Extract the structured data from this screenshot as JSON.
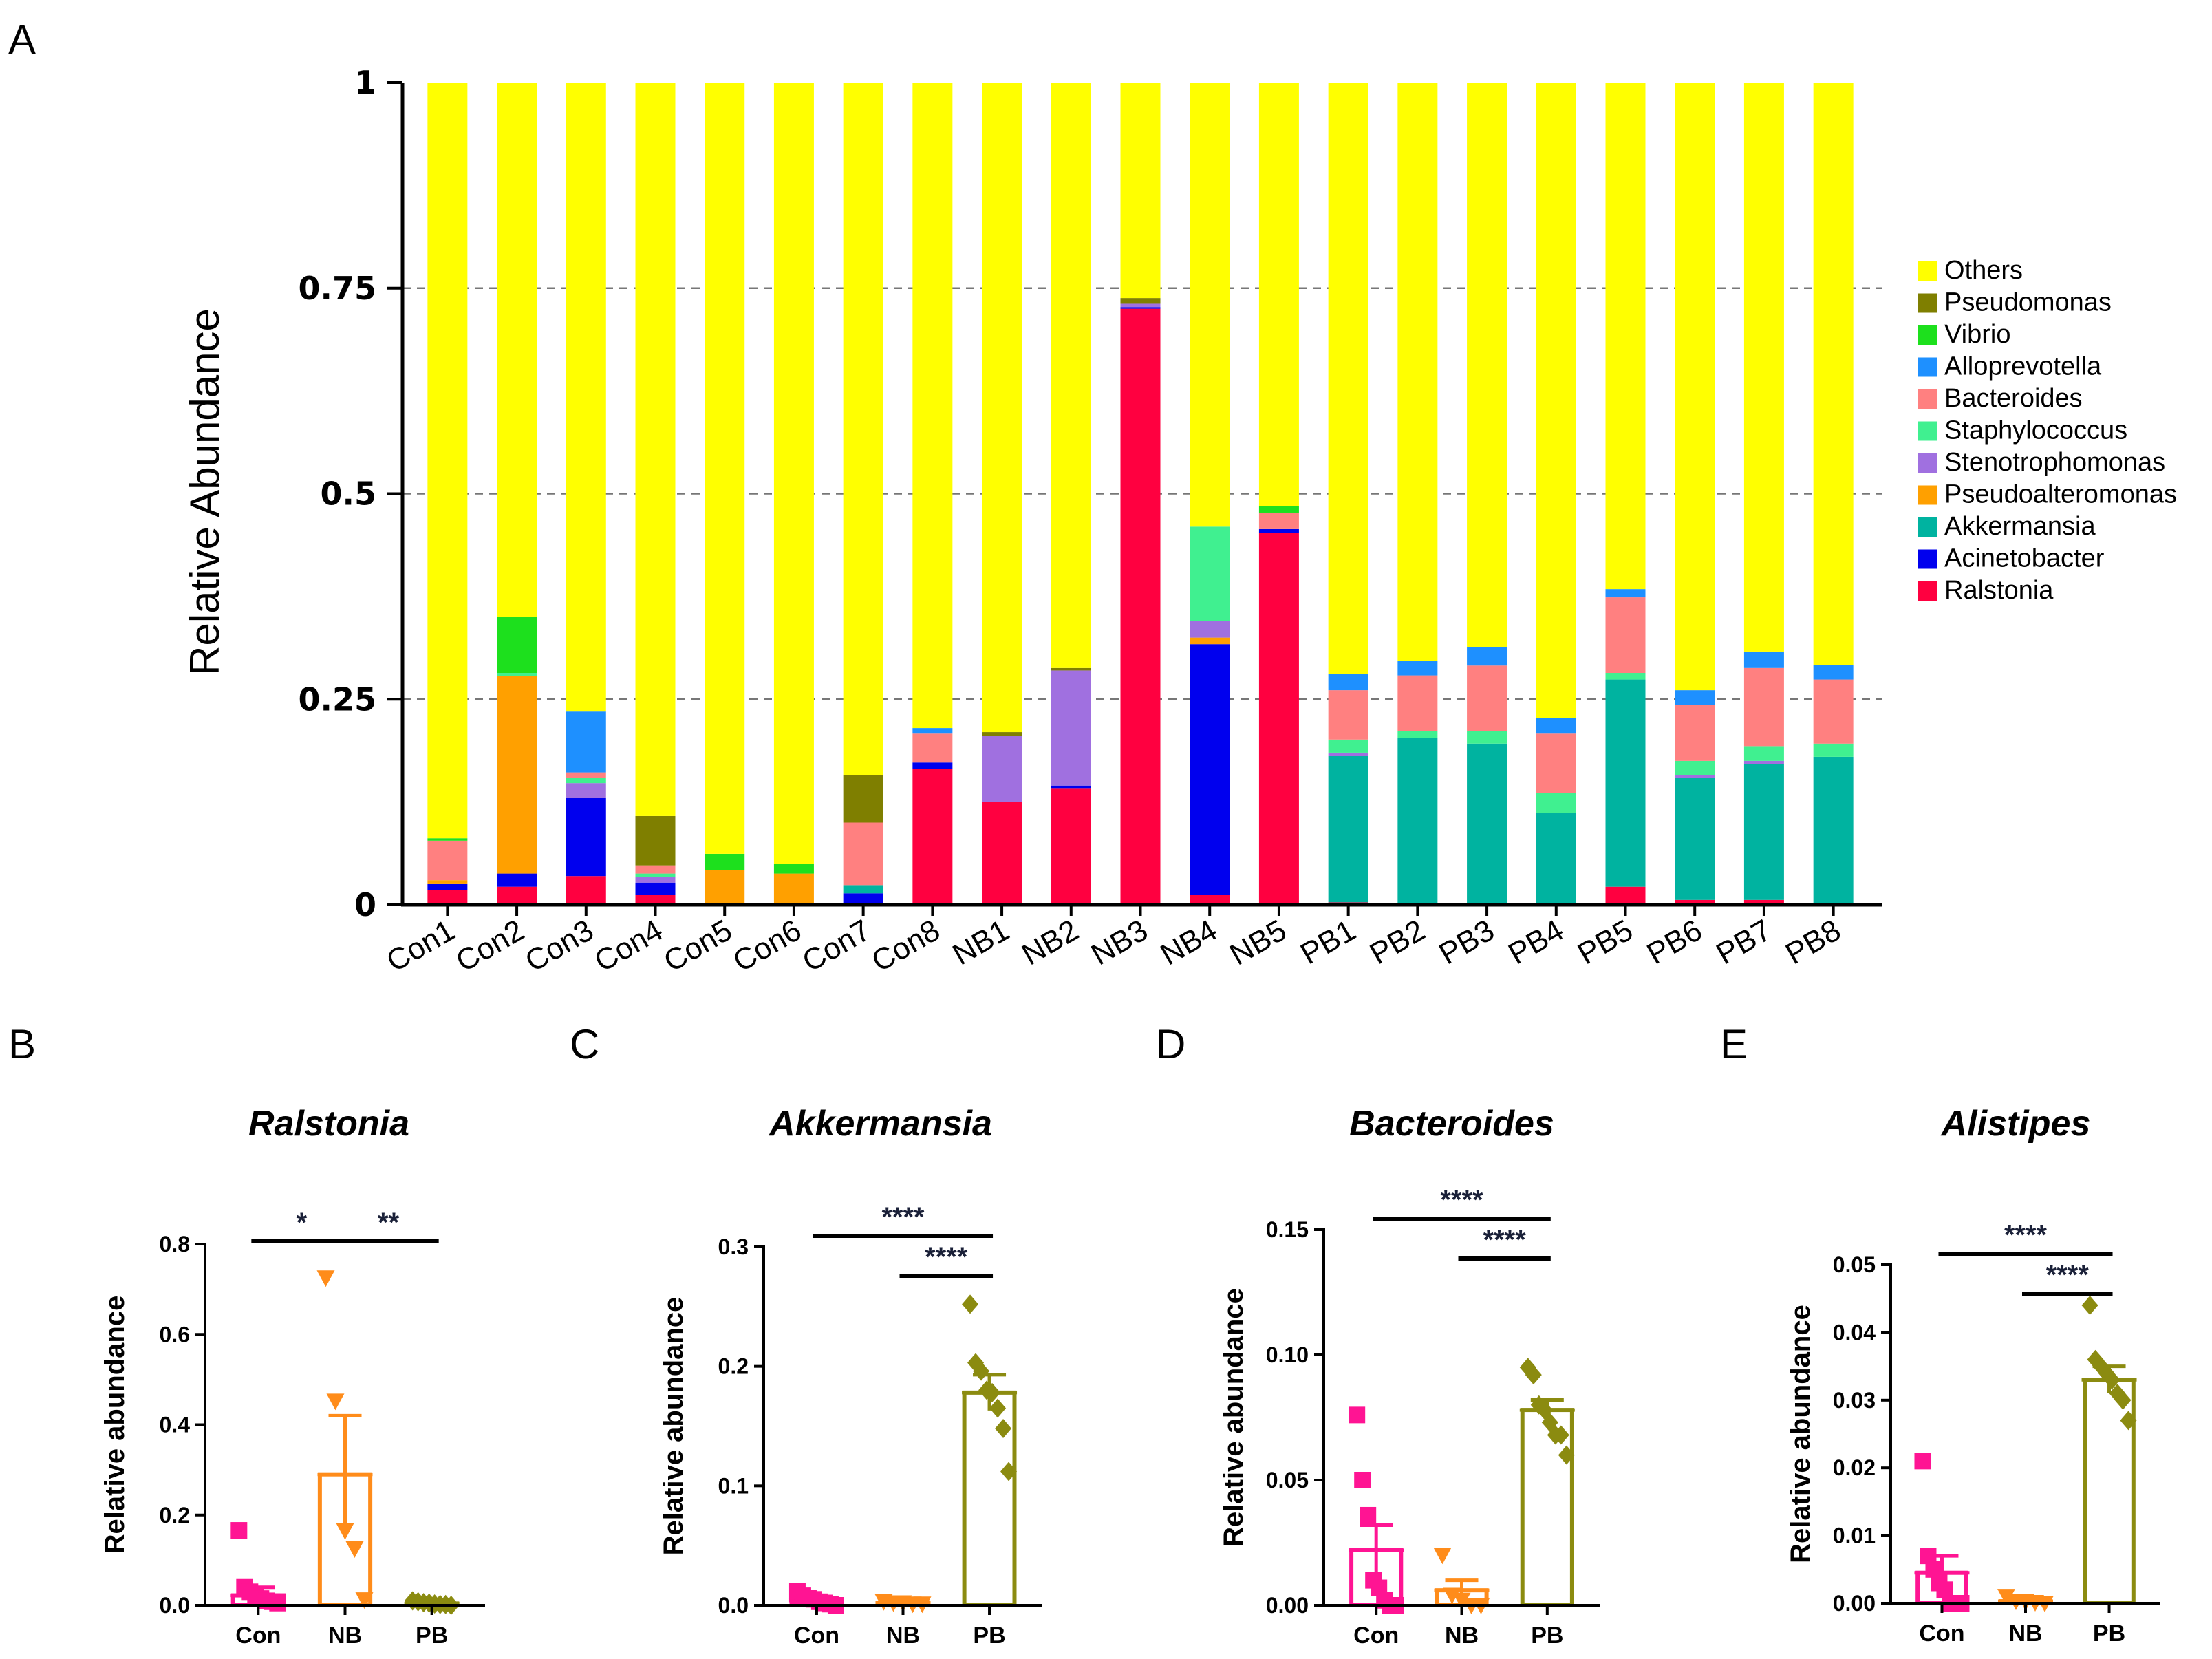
{
  "panel_labels": [
    "A",
    "B",
    "C",
    "D",
    "E"
  ],
  "colors": {
    "Others": "#ffff00",
    "Pseudomonas": "#7f7f00",
    "Vibrio": "#1de01d",
    "Alloprevotella": "#1e90ff",
    "Bacteroides": "#ff8080",
    "Staphylococcus": "#40f090",
    "Stenotrophomonas": "#a070e0",
    "Pseudoalteromonas": "#ffa000",
    "Akkermansia": "#00b3a0",
    "Acinetobacter": "#0000ee",
    "Ralstonia": "#ff0040",
    "Con": "#ff1493",
    "NB": "#ff8c1a",
    "PB": "#8b8b10"
  },
  "chart_data": [
    {
      "type": "bar",
      "stacked": true,
      "panel": "A",
      "title": "",
      "xlabel": "",
      "ylabel": "Relative Abundance",
      "ylim": [
        0,
        1
      ],
      "yticks": [
        0,
        0.25,
        0.5,
        0.75,
        1
      ],
      "ytick_labels": [
        "0",
        "0.25",
        "0.5",
        "0.75",
        "1"
      ],
      "grid": "dashed",
      "legend_position": "right",
      "categories": [
        "Con1",
        "Con2",
        "Con3",
        "Con4",
        "Con5",
        "Con6",
        "Con7",
        "Con8",
        "NB1",
        "NB2",
        "NB3",
        "NB4",
        "NB5",
        "PB1",
        "PB2",
        "PB3",
        "PB4",
        "PB5",
        "PB6",
        "PB7",
        "PB8"
      ],
      "legend": [
        "Others",
        "Pseudomonas",
        "Vibrio",
        "Alloprevotella",
        "Bacteroides",
        "Staphylococcus",
        "Stenotrophomonas",
        "Pseudoalteromonas",
        "Akkermansia",
        "Acinetobacter",
        "Ralstonia"
      ],
      "series": [
        {
          "name": "Ralstonia",
          "values": [
            0.018,
            0.022,
            0.035,
            0.012,
            0.0,
            0.0,
            0.0,
            0.165,
            0.125,
            0.142,
            0.725,
            0.012,
            0.452,
            0.003,
            0.0,
            0.0,
            0.0,
            0.022,
            0.006,
            0.006,
            0.0
          ]
        },
        {
          "name": "Acinetobacter",
          "values": [
            0.008,
            0.016,
            0.095,
            0.015,
            0.0,
            0.0,
            0.014,
            0.008,
            0.0,
            0.003,
            0.002,
            0.305,
            0.005,
            0.0,
            0.0,
            0.0,
            0.0,
            0.0,
            0.0,
            0.0,
            0.0
          ]
        },
        {
          "name": "Akkermansia",
          "values": [
            0.0,
            0.0,
            0.0,
            0.0,
            0.0,
            0.0,
            0.01,
            0.0,
            0.0,
            0.0,
            0.0,
            0.0,
            0.0,
            0.178,
            0.203,
            0.196,
            0.112,
            0.252,
            0.148,
            0.165,
            0.18
          ]
        },
        {
          "name": "Pseudoalteromonas",
          "values": [
            0.004,
            0.24,
            0.0,
            0.0,
            0.042,
            0.038,
            0.0,
            0.0,
            0.0,
            0.0,
            0.0,
            0.008,
            0.0,
            0.0,
            0.0,
            0.0,
            0.0,
            0.0,
            0.0,
            0.0,
            0.0
          ]
        },
        {
          "name": "Stenotrophomonas",
          "values": [
            0.0,
            0.0,
            0.018,
            0.007,
            0.0,
            0.0,
            0.0,
            0.0,
            0.08,
            0.14,
            0.004,
            0.02,
            0.0,
            0.004,
            0.0,
            0.0,
            0.0,
            0.0,
            0.004,
            0.004,
            0.0
          ]
        },
        {
          "name": "Staphylococcus",
          "values": [
            0.0,
            0.004,
            0.006,
            0.004,
            0.0,
            0.0,
            0.0,
            0.0,
            0.0,
            0.0,
            0.0,
            0.115,
            0.0,
            0.016,
            0.008,
            0.015,
            0.024,
            0.008,
            0.017,
            0.018,
            0.016
          ]
        },
        {
          "name": "Bacteroides",
          "values": [
            0.048,
            0.0,
            0.007,
            0.01,
            0.0,
            0.0,
            0.076,
            0.036,
            0.0,
            0.0,
            0.0,
            0.0,
            0.02,
            0.06,
            0.068,
            0.08,
            0.073,
            0.092,
            0.068,
            0.095,
            0.078
          ]
        },
        {
          "name": "Alloprevotella",
          "values": [
            0.0,
            0.0,
            0.074,
            0.0,
            0.0,
            0.0,
            0.0,
            0.006,
            0.0,
            0.0,
            0.0,
            0.0,
            0.0,
            0.02,
            0.018,
            0.022,
            0.018,
            0.01,
            0.018,
            0.02,
            0.018
          ]
        },
        {
          "name": "Vibrio",
          "values": [
            0.003,
            0.068,
            0.0,
            0.0,
            0.02,
            0.012,
            0.0,
            0.0,
            0.0,
            0.0,
            0.0,
            0.0,
            0.008,
            0.0,
            0.0,
            0.0,
            0.0,
            0.0,
            0.0,
            0.0,
            0.0
          ]
        },
        {
          "name": "Pseudomonas",
          "values": [
            0.0,
            0.0,
            0.0,
            0.06,
            0.0,
            0.0,
            0.058,
            0.0,
            0.005,
            0.003,
            0.007,
            0.0,
            0.0,
            0.0,
            0.0,
            0.0,
            0.0,
            0.0,
            0.0,
            0.0,
            0.0
          ]
        },
        {
          "name": "Others",
          "values": [
            0.919,
            0.65,
            0.765,
            0.892,
            0.938,
            0.95,
            0.842,
            0.785,
            0.79,
            0.712,
            0.262,
            0.54,
            0.515,
            0.719,
            0.703,
            0.687,
            0.773,
            0.616,
            0.739,
            0.692,
            0.708
          ]
        }
      ]
    },
    {
      "type": "scatter",
      "panel": "B",
      "title": "Ralstonia",
      "xlabel": "",
      "ylabel": "Relative abundance",
      "ylim": [
        0,
        0.8
      ],
      "yticks": [
        0,
        0.2,
        0.4,
        0.6,
        0.8
      ],
      "ytick_labels": [
        "0.0",
        "0.2",
        "0.4",
        "0.6",
        "0.8"
      ],
      "categories": [
        "Con",
        "NB",
        "PB"
      ],
      "bars": [
        0.022,
        0.29,
        0.004
      ],
      "sem": [
        0.018,
        0.13,
        0.003
      ],
      "points": [
        [
          0.166,
          0.04,
          0.03,
          0.022,
          0.015,
          0.01,
          0.008,
          0.005
        ],
        [
          0.725,
          0.452,
          0.165,
          0.125,
          0.012
        ],
        [
          0.01,
          0.008,
          0.006,
          0.005,
          0.003,
          0.002,
          0.002,
          0.0
        ]
      ],
      "markers": [
        "square",
        "triangle-down",
        "diamond"
      ],
      "significance": [
        {
          "pair": [
            0,
            1
          ],
          "label": "*"
        },
        {
          "pair": [
            1,
            2
          ],
          "label": "**"
        }
      ]
    },
    {
      "type": "scatter",
      "panel": "C",
      "title": "Akkermansia",
      "xlabel": "",
      "ylabel": "Relative abundance",
      "ylim": [
        0,
        0.3
      ],
      "yticks": [
        0,
        0.1,
        0.2,
        0.3
      ],
      "ytick_labels": [
        "0.0",
        "0.1",
        "0.2",
        "0.3"
      ],
      "categories": [
        "Con",
        "NB",
        "PB"
      ],
      "bars": [
        0.004,
        0.002,
        0.178
      ],
      "sem": [
        0.002,
        0.0005,
        0.015
      ],
      "points": [
        [
          0.012,
          0.008,
          0.006,
          0.005,
          0.003,
          0.002,
          0.001,
          0.0
        ],
        [
          0.003,
          0.002,
          0.002,
          0.001,
          0.001
        ],
        [
          0.252,
          0.203,
          0.196,
          0.18,
          0.178,
          0.165,
          0.148,
          0.112
        ]
      ],
      "markers": [
        "square",
        "triangle-down",
        "diamond"
      ],
      "significance": [
        {
          "pair": [
            0,
            2
          ],
          "label": "****"
        },
        {
          "pair": [
            1,
            2
          ],
          "label": "****"
        }
      ]
    },
    {
      "type": "scatter",
      "panel": "D",
      "title": "Bacteroides",
      "xlabel": "",
      "ylabel": "Relative abundance",
      "ylim": [
        0,
        0.15
      ],
      "yticks": [
        0,
        0.05,
        0.1,
        0.15
      ],
      "ytick_labels": [
        "0.00",
        "0.05",
        "0.10",
        "0.15"
      ],
      "categories": [
        "Con",
        "NB",
        "PB"
      ],
      "bars": [
        0.022,
        0.006,
        0.078
      ],
      "sem": [
        0.01,
        0.004,
        0.004
      ],
      "points": [
        [
          0.076,
          0.05,
          0.036,
          0.01,
          0.007,
          0.002,
          0.0,
          0.0
        ],
        [
          0.02,
          0.004,
          0.002,
          0.0,
          0.0
        ],
        [
          0.095,
          0.092,
          0.08,
          0.078,
          0.073,
          0.068,
          0.068,
          0.06
        ]
      ],
      "markers": [
        "square",
        "triangle-down",
        "diamond"
      ],
      "significance": [
        {
          "pair": [
            0,
            2
          ],
          "label": "****"
        },
        {
          "pair": [
            1,
            2
          ],
          "label": "****"
        }
      ]
    },
    {
      "type": "scatter",
      "panel": "E",
      "title": "Alistipes",
      "xlabel": "",
      "ylabel": "Relative abundance",
      "ylim": [
        0,
        0.05
      ],
      "yticks": [
        0,
        0.01,
        0.02,
        0.03,
        0.04,
        0.05
      ],
      "ytick_labels": [
        "0.00",
        "0.01",
        "0.02",
        "0.03",
        "0.04",
        "0.05"
      ],
      "categories": [
        "Con",
        "NB",
        "PB"
      ],
      "bars": [
        0.0045,
        0.0003,
        0.033
      ],
      "sem": [
        0.0025,
        0.0002,
        0.002
      ],
      "points": [
        [
          0.021,
          0.007,
          0.005,
          0.003,
          0.002,
          0.0,
          0.0,
          0.0
        ],
        [
          0.001,
          0.0003,
          0.0002,
          0.0001,
          0.0
        ],
        [
          0.044,
          0.036,
          0.035,
          0.034,
          0.033,
          0.031,
          0.03,
          0.027
        ]
      ],
      "markers": [
        "square",
        "triangle-down",
        "diamond"
      ],
      "significance": [
        {
          "pair": [
            0,
            2
          ],
          "label": "****"
        },
        {
          "pair": [
            1,
            2
          ],
          "label": "****"
        }
      ]
    }
  ]
}
